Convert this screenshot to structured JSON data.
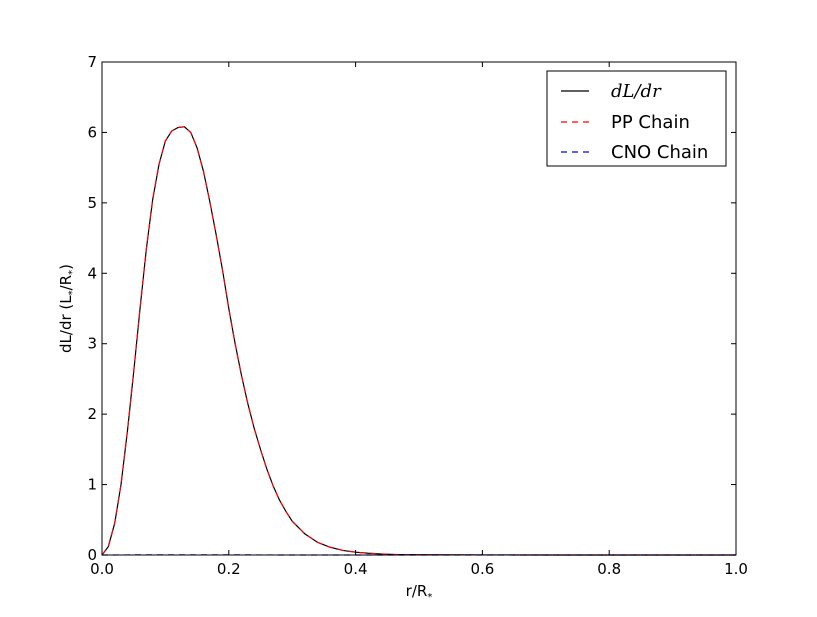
{
  "chart_data": {
    "type": "line",
    "title": "",
    "xlabel": "r/R",
    "xlabel_sub": "*",
    "ylabel_parts": [
      "dL/dr (L",
      "*",
      "/R",
      "*",
      ")"
    ],
    "xlim": [
      0.0,
      1.0
    ],
    "ylim": [
      0,
      7
    ],
    "x_ticks": [
      "0.0",
      "0.2",
      "0.4",
      "0.6",
      "0.8",
      "1.0"
    ],
    "y_ticks": [
      "0",
      "1",
      "2",
      "3",
      "4",
      "5",
      "6",
      "7"
    ],
    "grid": false,
    "legend_position": "top-right",
    "series": [
      {
        "name": "dL/dr",
        "color": "#000000",
        "style": "solid",
        "x": [
          0.0,
          0.01,
          0.02,
          0.03,
          0.04,
          0.05,
          0.06,
          0.07,
          0.08,
          0.09,
          0.1,
          0.11,
          0.12,
          0.13,
          0.14,
          0.15,
          0.16,
          0.17,
          0.18,
          0.19,
          0.2,
          0.21,
          0.22,
          0.23,
          0.24,
          0.25,
          0.26,
          0.27,
          0.28,
          0.29,
          0.3,
          0.32,
          0.34,
          0.36,
          0.38,
          0.4,
          0.42,
          0.44,
          0.46,
          0.5,
          0.6,
          0.7,
          0.8,
          0.9,
          1.0
        ],
        "y": [
          0.0,
          0.12,
          0.45,
          1.0,
          1.75,
          2.6,
          3.5,
          4.35,
          5.05,
          5.55,
          5.88,
          6.02,
          6.07,
          6.08,
          6.0,
          5.78,
          5.45,
          5.02,
          4.55,
          4.05,
          3.5,
          3.0,
          2.55,
          2.15,
          1.8,
          1.5,
          1.22,
          0.98,
          0.78,
          0.62,
          0.48,
          0.3,
          0.18,
          0.11,
          0.065,
          0.04,
          0.025,
          0.015,
          0.008,
          0.004,
          0.001,
          0.0,
          0.0,
          0.0,
          0.0
        ]
      },
      {
        "name": "PP Chain",
        "color": "#ff0000",
        "style": "dashed",
        "x": [
          0.0,
          0.01,
          0.02,
          0.03,
          0.04,
          0.05,
          0.06,
          0.07,
          0.08,
          0.09,
          0.1,
          0.11,
          0.12,
          0.13,
          0.14,
          0.15,
          0.16,
          0.17,
          0.18,
          0.19,
          0.2,
          0.21,
          0.22,
          0.23,
          0.24,
          0.25,
          0.26,
          0.27,
          0.28,
          0.29,
          0.3,
          0.32,
          0.34,
          0.36,
          0.38,
          0.4,
          0.42,
          0.44,
          0.46,
          0.5,
          0.6,
          0.7,
          0.8,
          0.9,
          1.0
        ],
        "y": [
          0.0,
          0.12,
          0.45,
          1.0,
          1.75,
          2.6,
          3.5,
          4.35,
          5.05,
          5.55,
          5.88,
          6.02,
          6.07,
          6.08,
          6.0,
          5.78,
          5.45,
          5.02,
          4.55,
          4.05,
          3.5,
          3.0,
          2.55,
          2.15,
          1.8,
          1.5,
          1.22,
          0.98,
          0.78,
          0.62,
          0.48,
          0.3,
          0.18,
          0.11,
          0.065,
          0.04,
          0.025,
          0.015,
          0.008,
          0.004,
          0.001,
          0.0,
          0.0,
          0.0,
          0.0
        ]
      },
      {
        "name": "CNO Chain",
        "color": "#0000ff",
        "style": "dashed",
        "x": [
          0.0,
          0.1,
          0.2,
          0.3,
          0.4,
          0.5,
          0.6,
          0.7,
          0.8,
          0.9,
          1.0
        ],
        "y": [
          0.0,
          0.003,
          0.002,
          0.0,
          0.0,
          0.0,
          0.0,
          0.0,
          0.0,
          0.0,
          0.0
        ]
      }
    ],
    "legend": {
      "entries": [
        "dL/dr",
        "PP Chain",
        "CNO Chain"
      ]
    }
  }
}
